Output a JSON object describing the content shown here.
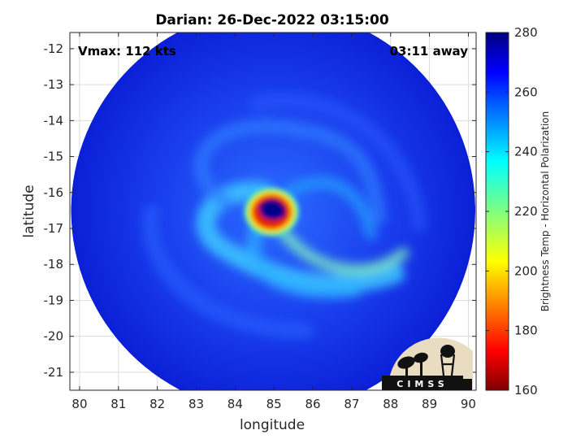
{
  "title": "Darian: 26-Dec-2022 03:15:00",
  "annotations": {
    "vmax": "Vmax: 112 kts",
    "time_away": "03:11 away"
  },
  "logo_text": "CIMSS",
  "xaxis": {
    "label": "longitude",
    "range": [
      79.75,
      90.2
    ],
    "ticks": [
      80,
      81,
      82,
      83,
      84,
      85,
      86,
      87,
      88,
      89,
      90
    ]
  },
  "yaxis": {
    "label": "latitude",
    "range": [
      -21.5,
      -11.55
    ],
    "ticks": [
      -12,
      -13,
      -14,
      -15,
      -16,
      -17,
      -18,
      -19,
      -20,
      -21
    ]
  },
  "colorbar": {
    "label": "Brightness Temp - Horizontal Polarization",
    "range": [
      160,
      280
    ],
    "ticks": [
      160,
      180,
      200,
      220,
      240,
      260,
      280
    ],
    "colormap": "jet"
  },
  "storm": {
    "eye_lon": 84.98,
    "eye_lat": -16.45,
    "swath_center_lon": 84.98,
    "swath_center_lat": -16.5,
    "swath_radius_deg": 5.2
  },
  "colors": {
    "background_cold": "#0a1fd8",
    "swath_base": "#1430e6",
    "eye": "#00008f",
    "eyewall": "#d81e00"
  },
  "grid": true
}
